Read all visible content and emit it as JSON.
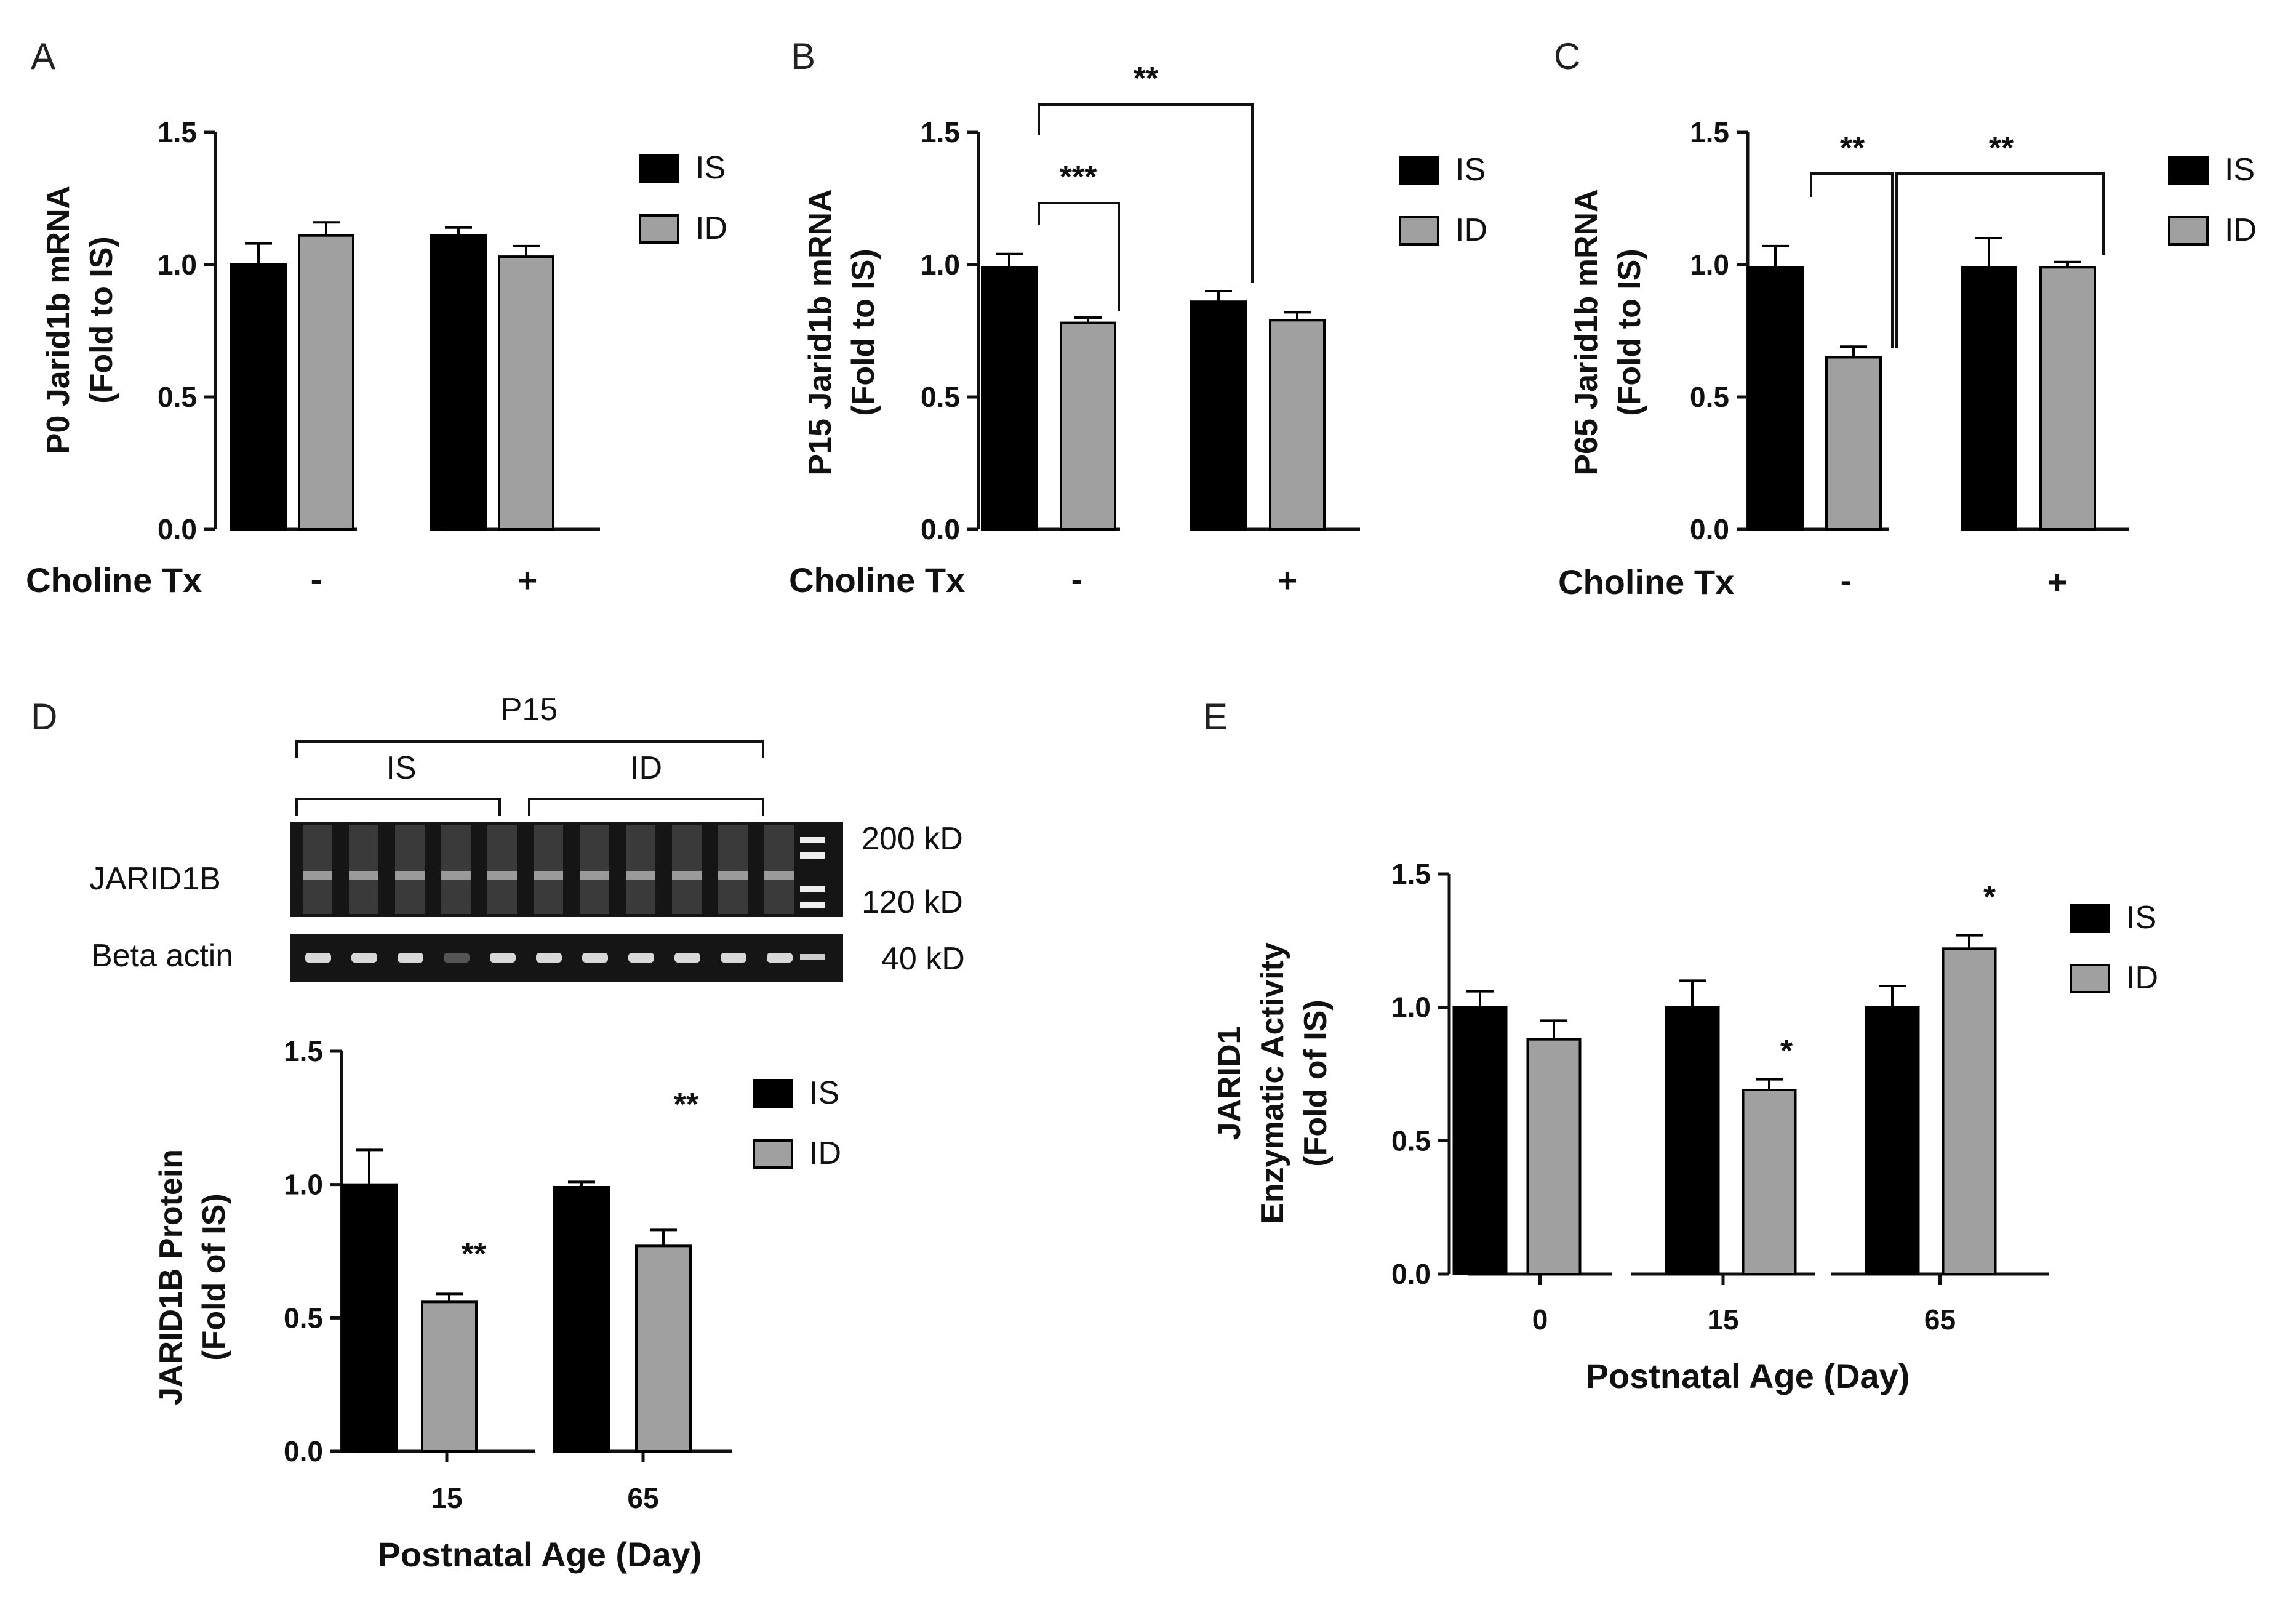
{
  "panels": {
    "A": {
      "letter": "A",
      "ylabel_line1": "P0 Jarid1b mRNA",
      "ylabel_line2": "(Fold to IS)",
      "xrow_label": "Choline Tx",
      "choline_minus": "-",
      "choline_plus": "+"
    },
    "B": {
      "letter": "B",
      "ylabel_line1": "P15 Jarid1b mRNA",
      "ylabel_line2": "(Fold to IS)",
      "xrow_label": "Choline Tx",
      "choline_minus": "-",
      "choline_plus": "+",
      "sig1": "***",
      "sig2": "**"
    },
    "C": {
      "letter": "C",
      "ylabel_line1": "P65 Jarid1b mRNA",
      "ylabel_line2": "(Fold to IS)",
      "xrow_label": "Choline Tx",
      "choline_minus": "-",
      "choline_plus": "+",
      "sig1": "**",
      "sig2": "**"
    },
    "D": {
      "letter": "D",
      "ylabel_line1": "JARID1B Protein",
      "ylabel_line2": "(Fold of IS)",
      "xlabel": "Postnatal Age (Day)",
      "blot": {
        "group": "P15",
        "is_label": "IS",
        "id_label": "ID",
        "row1": "JARID1B",
        "row2": "Beta actin",
        "mw1": "200 kD",
        "mw2": "120 kD",
        "mw3": "40 kD"
      },
      "sig_15": "**",
      "sig_65": "**"
    },
    "E": {
      "letter": "E",
      "ylabel_line1": "JARID1",
      "ylabel_line2": "Enzymatic Activity",
      "ylabel_line3": "(Fold of IS)",
      "xlabel": "Postnatal Age (Day)",
      "sig_15": "*",
      "sig_65": "*"
    }
  },
  "legend": {
    "is": "IS",
    "id": "ID"
  },
  "colors": {
    "is": "#000000",
    "id": "#a0a0a0"
  },
  "chart_data": [
    {
      "id": "A",
      "type": "bar",
      "title": "",
      "ylabel": "P0 Jarid1b mRNA (Fold to IS)",
      "xlabel": "Choline Tx",
      "categories": [
        "-",
        "+"
      ],
      "ylim": [
        0,
        1.5
      ],
      "yticks": [
        "0.0",
        "0.5",
        "1.0",
        "1.5"
      ],
      "series": [
        {
          "name": "IS",
          "values": [
            1.0,
            1.11
          ],
          "errors": [
            0.08,
            0.03
          ]
        },
        {
          "name": "ID",
          "values": [
            1.11,
            1.03
          ],
          "errors": [
            0.05,
            0.04
          ]
        }
      ]
    },
    {
      "id": "B",
      "type": "bar",
      "title": "",
      "ylabel": "P15 Jarid1b mRNA (Fold to IS)",
      "xlabel": "Choline Tx",
      "categories": [
        "-",
        "+"
      ],
      "ylim": [
        0,
        1.5
      ],
      "yticks": [
        "0.0",
        "0.5",
        "1.0",
        "1.5"
      ],
      "series": [
        {
          "name": "IS",
          "values": [
            0.99,
            0.86
          ],
          "errors": [
            0.05,
            0.04
          ]
        },
        {
          "name": "ID",
          "values": [
            0.78,
            0.79
          ],
          "errors": [
            0.02,
            0.03
          ]
        }
      ],
      "annotations": [
        {
          "text": "***",
          "between": "IS(-) vs ID(-)"
        },
        {
          "text": "**",
          "between": "IS(-) vs IS(+)"
        }
      ]
    },
    {
      "id": "C",
      "type": "bar",
      "title": "",
      "ylabel": "P65 Jarid1b mRNA (Fold to IS)",
      "xlabel": "Choline Tx",
      "categories": [
        "-",
        "+"
      ],
      "ylim": [
        0,
        1.5
      ],
      "yticks": [
        "0.0",
        "0.5",
        "1.0",
        "1.5"
      ],
      "series": [
        {
          "name": "IS",
          "values": [
            0.99,
            0.99
          ],
          "errors": [
            0.08,
            0.11
          ]
        },
        {
          "name": "ID",
          "values": [
            0.65,
            0.99
          ],
          "errors": [
            0.04,
            0.02
          ]
        }
      ],
      "annotations": [
        {
          "text": "**",
          "between": "IS(-) vs ID(-)"
        },
        {
          "text": "**",
          "between": "ID(-) vs ID(+)"
        }
      ]
    },
    {
      "id": "D",
      "type": "bar",
      "title": "",
      "ylabel": "JARID1B Protein (Fold of IS)",
      "xlabel": "Postnatal Age (Day)",
      "categories": [
        "15",
        "65"
      ],
      "ylim": [
        0,
        1.5
      ],
      "yticks": [
        "0.0",
        "0.5",
        "1.0",
        "1.5"
      ],
      "series": [
        {
          "name": "IS",
          "values": [
            1.0,
            0.99
          ],
          "errors": [
            0.13,
            0.02
          ]
        },
        {
          "name": "ID",
          "values": [
            0.56,
            0.77
          ],
          "errors": [
            0.03,
            0.06
          ]
        }
      ],
      "annotations": [
        {
          "text": "**",
          "over": "ID 15"
        },
        {
          "text": "**",
          "over": "ID 65"
        }
      ]
    },
    {
      "id": "E",
      "type": "bar",
      "title": "",
      "ylabel": "JARID1 Enzymatic Activity (Fold of IS)",
      "xlabel": "Postnatal Age (Day)",
      "categories": [
        "0",
        "15",
        "65"
      ],
      "ylim": [
        0,
        1.5
      ],
      "yticks": [
        "0.0",
        "0.5",
        "1.0",
        "1.5"
      ],
      "series": [
        {
          "name": "IS",
          "values": [
            1.0,
            1.0,
            1.0
          ],
          "errors": [
            0.06,
            0.1,
            0.08
          ]
        },
        {
          "name": "ID",
          "values": [
            0.88,
            0.69,
            1.22
          ],
          "errors": [
            0.07,
            0.04,
            0.05
          ]
        }
      ],
      "annotations": [
        {
          "text": "*",
          "over": "ID 15"
        },
        {
          "text": "*",
          "over": "ID 65"
        }
      ]
    }
  ]
}
